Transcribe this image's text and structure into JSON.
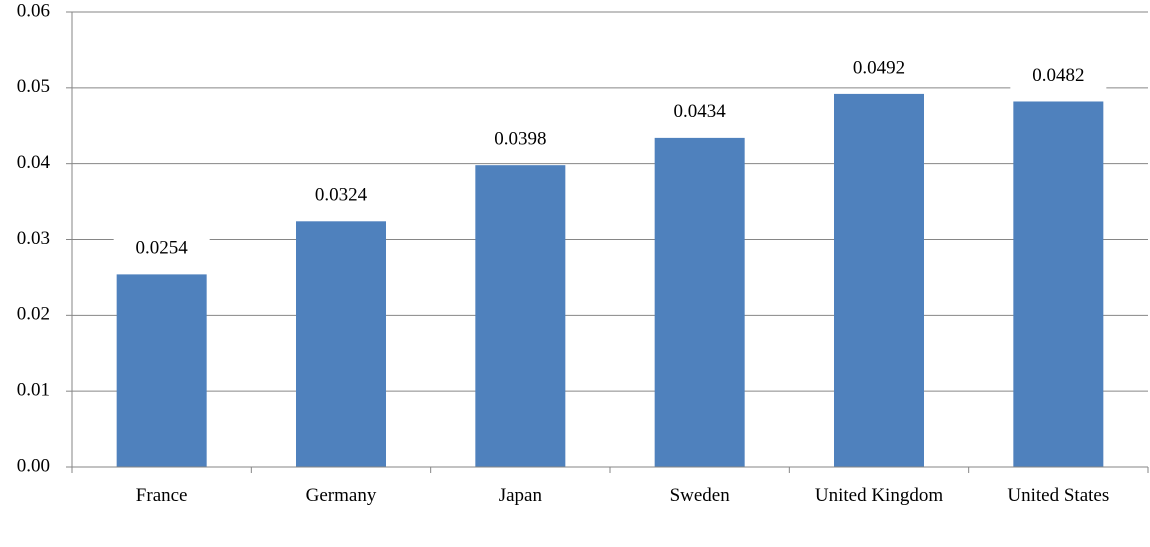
{
  "chart_data": {
    "type": "bar",
    "categories": [
      "France",
      "Germany",
      "Japan",
      "Sweden",
      "United Kingdom",
      "United States"
    ],
    "values": [
      0.0254,
      0.0324,
      0.0398,
      0.0434,
      0.0492,
      0.0482
    ],
    "color": "#4f81bd",
    "ylim": [
      0,
      0.06
    ],
    "yticks": [
      {
        "value": 0,
        "label": "0.00"
      },
      0.01,
      0.02,
      0.03,
      0.04,
      0.05,
      0.06
    ],
    "grid": true
  }
}
